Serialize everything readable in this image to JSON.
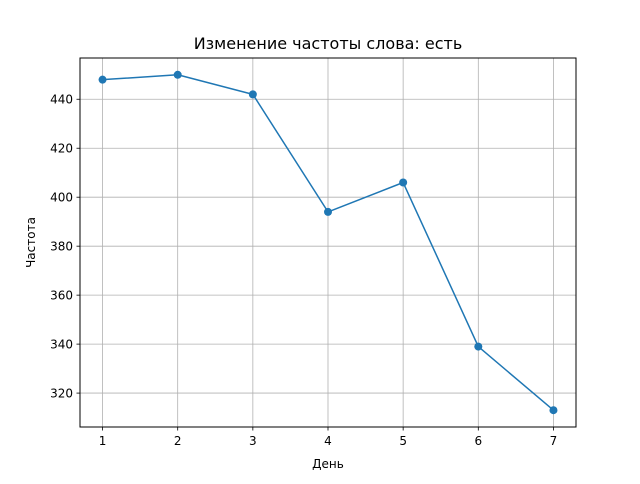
{
  "chart_data": {
    "type": "line",
    "title": "Изменение частоты слова: есть",
    "xlabel": "День",
    "ylabel": "Частота",
    "x": [
      1,
      2,
      3,
      4,
      5,
      6,
      7
    ],
    "series": [
      {
        "values": [
          448,
          450,
          442,
          394,
          406,
          339,
          313
        ]
      }
    ],
    "xlim": [
      0.7,
      7.3
    ],
    "ylim": [
      306.15,
      456.85
    ],
    "xticks": [
      1,
      2,
      3,
      4,
      5,
      6,
      7
    ],
    "xtick_labels": [
      "1",
      "2",
      "3",
      "4",
      "5",
      "6",
      "7"
    ],
    "yticks": [
      320,
      340,
      360,
      380,
      400,
      420,
      440
    ],
    "ytick_labels": [
      "320",
      "340",
      "360",
      "380",
      "400",
      "420",
      "440"
    ],
    "grid": true,
    "line_color": "#1f77b4",
    "marker": "circle"
  }
}
